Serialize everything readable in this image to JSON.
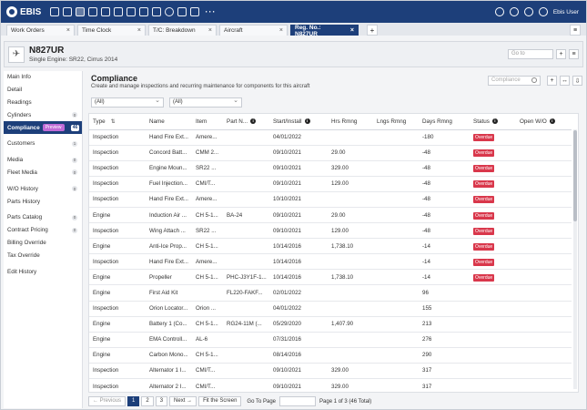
{
  "app": {
    "logo_text": "EBIS",
    "user": "Ebis User",
    "more": "···"
  },
  "tabs": [
    {
      "label": "Work Orders",
      "close": "×",
      "active": false
    },
    {
      "label": "Time Clock",
      "close": "×",
      "active": false
    },
    {
      "label": "T/C: Breakdown",
      "close": "×",
      "active": false
    },
    {
      "label": "Aircraft",
      "close": "×",
      "active": false
    },
    {
      "label": "Reg. No.: N827UR",
      "close": "×",
      "active": true
    }
  ],
  "tab_plus": "+",
  "tab_menu": "≡",
  "aircraft": {
    "reg": "N827UR",
    "subtitle": "Single Engine: SR22, Cirrus 2014",
    "goto_placeholder": "Go to"
  },
  "sidebar": {
    "items": [
      {
        "label": "Main Info"
      },
      {
        "label": "Detail"
      },
      {
        "label": "Readings"
      },
      {
        "label": "Cylinders",
        "badge": "0"
      },
      {
        "label": "Compliance",
        "preview": "Preview",
        "count": "46",
        "active": true
      },
      {
        "label": "Customers",
        "badge": "1",
        "gap": true
      },
      {
        "label": "Media",
        "badge": "0",
        "gap": true
      },
      {
        "label": "Fleet Media",
        "badge": "0"
      },
      {
        "label": "W/O History",
        "badge": "0",
        "gap": true
      },
      {
        "label": "Parts History"
      },
      {
        "label": "Parts Catalog",
        "badge": "0",
        "gap": true
      },
      {
        "label": "Contract Pricing",
        "badge": "0"
      },
      {
        "label": "Billing Override"
      },
      {
        "label": "Tax Override"
      },
      {
        "label": "Edit History",
        "gap": true
      }
    ]
  },
  "compliance": {
    "title": "Compliance",
    "description": "Create and manage inspections and recurring maintenance for components for this aircraft",
    "search_placeholder": "Compliance",
    "filter1": "(All)",
    "filter2": "(All)"
  },
  "table": {
    "columns": [
      "Type",
      "Name",
      "Item",
      "Part N...",
      "Start/Install",
      "Hrs Rmng",
      "Lngs Rmng",
      "Days Rmng",
      "Status",
      "Open W/O"
    ],
    "rows": [
      [
        "Inspection",
        "Hand Fire Ext...",
        "Amere...",
        "",
        "04/01/2022",
        "",
        "",
        "-180",
        "Overdue",
        ""
      ],
      [
        "Inspection",
        "Concord Batt...",
        "CMM 2...",
        "",
        "09/10/2021",
        "29.00",
        "",
        "-48",
        "Overdue",
        ""
      ],
      [
        "Inspection",
        "Engine Moun...",
        "SR22 ...",
        "",
        "09/10/2021",
        "329.00",
        "",
        "-48",
        "Overdue",
        ""
      ],
      [
        "Inspection",
        "Fuel Injection...",
        "CMI/T...",
        "",
        "09/10/2021",
        "129.00",
        "",
        "-48",
        "Overdue",
        ""
      ],
      [
        "Inspection",
        "Hand Fire Ext...",
        "Amere...",
        "",
        "10/10/2021",
        "",
        "",
        "-48",
        "Overdue",
        ""
      ],
      [
        "Engine",
        "Induction Air ...",
        "CH 5-1...",
        "BA-24",
        "09/10/2021",
        "29.00",
        "",
        "-48",
        "Overdue",
        ""
      ],
      [
        "Inspection",
        "Wing Attach ...",
        "SR22 ...",
        "",
        "09/10/2021",
        "129.00",
        "",
        "-48",
        "Overdue",
        ""
      ],
      [
        "Engine",
        "Anti-Ice Prop...",
        "CH 5-1...",
        "",
        "10/14/2016",
        "1,738.10",
        "",
        "-14",
        "Overdue",
        ""
      ],
      [
        "Inspection",
        "Hand Fire Ext...",
        "Amere...",
        "",
        "10/14/2016",
        "",
        "",
        "-14",
        "Overdue",
        ""
      ],
      [
        "Engine",
        "Propeller",
        "CH 5-1...",
        "PHC-J3Y1F-1...",
        "10/14/2016",
        "1,738.10",
        "",
        "-14",
        "Overdue",
        ""
      ],
      [
        "Engine",
        "First Aid Kit",
        "",
        "FL220-FAKF...",
        "02/01/2022",
        "",
        "",
        "96",
        "",
        ""
      ],
      [
        "Inspection",
        "Orion Locator...",
        "Orion ...",
        "",
        "04/01/2022",
        "",
        "",
        "155",
        "",
        ""
      ],
      [
        "Engine",
        "Battery 1 (Co...",
        "CH 5-1...",
        "RG24-11M (...",
        "05/29/2020",
        "1,407.90",
        "",
        "213",
        "",
        ""
      ],
      [
        "Engine",
        "EMA Controll...",
        "AL-6",
        "",
        "07/31/2016",
        "",
        "",
        "276",
        "",
        ""
      ],
      [
        "Engine",
        "Carbon Mono...",
        "CH 5-1...",
        "",
        "08/14/2016",
        "",
        "",
        "290",
        "",
        ""
      ],
      [
        "Inspection",
        "Alternator 1 I...",
        "CMI/T...",
        "",
        "09/10/2021",
        "329.00",
        "",
        "317",
        "",
        ""
      ],
      [
        "Inspection",
        "Alternator 2 I...",
        "CMI/T...",
        "",
        "09/10/2021",
        "329.00",
        "",
        "317",
        "",
        ""
      ]
    ]
  },
  "pager": {
    "previous": "← Previous",
    "pages": [
      "1",
      "2",
      "3"
    ],
    "next": "Next →",
    "fit": "Fit the Screen",
    "goto_label": "Go To Page",
    "info": "Page 1 of 3 (46 Total)"
  },
  "colors": {
    "brand": "#1d3f7a",
    "overdue": "#d9374b",
    "preview": "#c06bd6"
  }
}
